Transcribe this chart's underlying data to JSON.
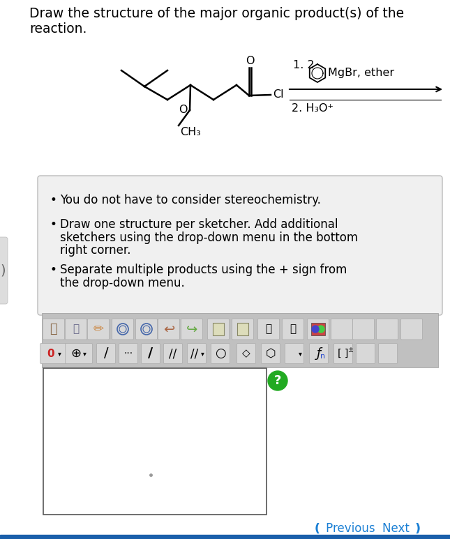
{
  "bg_color": "#ffffff",
  "title_line1": "Draw the structure of the major organic product(s) of the",
  "title_line2": "reaction.",
  "title_fontsize": 13.5,
  "bullet_items": [
    "You do not have to consider stereochemistry.",
    "Draw one structure per sketcher. Add additional",
    "sketchers using the drop-down menu in the bottom",
    "right corner.",
    "Separate multiple products using the + sign from",
    "the drop-down menu."
  ],
  "reagent1": "1. 2",
  "reagent2": "MgBr, ether",
  "reagent3": "2. H₃O⁺",
  "nav_prev": "❪ Previous",
  "nav_next": "Next ❫",
  "toolbar_bg": "#c8c8c8",
  "bullet_box_bg": "#f0f0f0",
  "bullet_box_border": "#cccccc",
  "sketcher_border": "#555555",
  "sketcher_bg": "#ffffff",
  "green_btn": "#22aa22",
  "nav_color": "#1a7fd4",
  "bottom_bar_color": "#1a5faa",
  "mol_lw": 1.8,
  "mol_color": "#000000"
}
